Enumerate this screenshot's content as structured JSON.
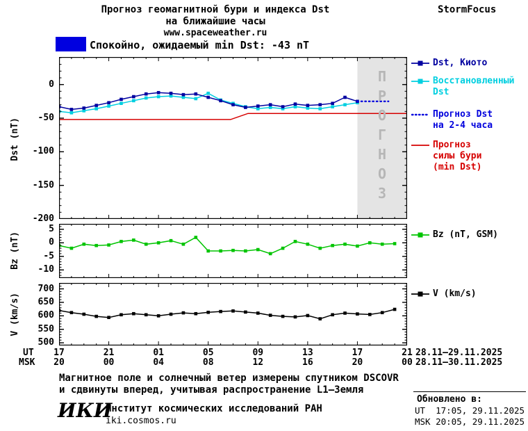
{
  "header": {
    "title_line1": "Прогноз геомагнитной бури и индекса Dst",
    "title_line2": "на ближайшие часы",
    "website": "www.spaceweather.ru",
    "brand": "StormFocus"
  },
  "banner": {
    "text": "Спокойно, ожидаемый min Dst: -43 nT"
  },
  "watermark": "ПРОГНОЗ",
  "colors": {
    "navy": "#0000a0",
    "cyan": "#00cfe0",
    "blue": "#0000dd",
    "red": "#d60000",
    "green": "#00c400",
    "black": "#000000",
    "banner_blue": "#0000e0",
    "forecast_gray": "#e4e4e4",
    "watermark_gray": "#b6b6b6"
  },
  "legend": {
    "dst_kyoto": "Dst, Киото",
    "restored": "Восстановленный\nDst",
    "forecast_dst": "Прогноз Dst\nна 2-4 часа",
    "forecast_storm": "Прогноз\nсилы бури\n(min Dst)",
    "bz": "Bz (nT, GSM)",
    "v": "V (km/s)"
  },
  "xaxis": {
    "ut_label": "UT",
    "msk_label": "MSK",
    "tick_hours": [
      0,
      4,
      8,
      12,
      16,
      20,
      24,
      28
    ],
    "ut_ticks": [
      "17",
      "21",
      "01",
      "05",
      "09",
      "13",
      "17",
      "21"
    ],
    "msk_ticks": [
      "20",
      "00",
      "04",
      "08",
      "12",
      "16",
      "20",
      "00"
    ],
    "ut_dates": "28.11–29.11.2025",
    "msk_dates": "28.11–30.11.2025"
  },
  "chart_data": [
    {
      "id": "dst",
      "type": "line",
      "title": "Прогноз геомагнитной бури и индекса Dst",
      "ylabel": "Dst (nT)",
      "xlabel": "UT/MSK hours",
      "xlim": [
        0,
        28
      ],
      "ylim": [
        -200,
        41
      ],
      "yticks": [
        0,
        -50,
        -100,
        -150,
        -200
      ],
      "forecast_region": [
        24,
        28
      ],
      "series": [
        {
          "name": "Прогноз силы бури (min Dst)",
          "color": "#d60000",
          "marker": false,
          "x": [
            0,
            13.8,
            15.2,
            28
          ],
          "y": [
            -52,
            -52,
            -43,
            -43
          ]
        },
        {
          "name": "Восстановленный Dst",
          "color": "#00cfe0",
          "marker": true,
          "x0": 0,
          "dx": 1,
          "y": [
            -40,
            -42,
            -39,
            -36,
            -32,
            -28,
            -24,
            -20,
            -18,
            -17,
            -19,
            -21,
            -13,
            -23,
            -28,
            -33,
            -36,
            -34,
            -36,
            -33,
            -35,
            -36,
            -33,
            -30,
            -27
          ]
        },
        {
          "name": "Dst, Киото",
          "color": "#0000a0",
          "marker": true,
          "x0": 0,
          "dx": 1,
          "y": [
            -33,
            -37,
            -35,
            -31,
            -27,
            -22,
            -18,
            -14,
            -12,
            -13,
            -15,
            -14,
            -19,
            -24,
            -30,
            -34,
            -32,
            -30,
            -33,
            -29,
            -31,
            -30,
            -28,
            -19,
            -25
          ]
        },
        {
          "name": "Прогноз Dst на 2-4 часа",
          "color": "#0000dd",
          "marker": false,
          "style": "dotted",
          "x": [
            24,
            26.5
          ],
          "y": [
            -25,
            -25
          ]
        }
      ]
    },
    {
      "id": "bz",
      "type": "line",
      "ylabel": "Bz (nT)",
      "xlim": [
        0,
        28
      ],
      "ylim": [
        -13,
        7
      ],
      "yticks": [
        5,
        0,
        -5,
        -10
      ],
      "series": [
        {
          "name": "Bz (nT, GSM)",
          "color": "#00c400",
          "marker": true,
          "x0": 0,
          "dx": 1,
          "y": [
            -1,
            -2,
            -0.5,
            -1,
            -0.8,
            0.5,
            1,
            -0.5,
            0,
            0.8,
            -0.5,
            2,
            -3,
            -3,
            -2.8,
            -3,
            -2.5,
            -4,
            -2,
            0.5,
            -0.5,
            -2,
            -1,
            -0.5,
            -1.2,
            0,
            -0.5,
            -0.3
          ]
        }
      ]
    },
    {
      "id": "v",
      "type": "line",
      "ylabel": "V (km/s)",
      "xlim": [
        0,
        28
      ],
      "ylim": [
        490,
        722
      ],
      "yticks": [
        700,
        650,
        600,
        550,
        500
      ],
      "series": [
        {
          "name": "V (km/s)",
          "color": "#000000",
          "marker": true,
          "x0": 0,
          "dx": 1,
          "y": [
            620,
            612,
            606,
            598,
            594,
            604,
            608,
            604,
            600,
            606,
            611,
            608,
            613,
            616,
            618,
            614,
            610,
            602,
            598,
            596,
            601,
            589,
            604,
            610,
            607,
            605,
            612,
            624
          ]
        }
      ]
    }
  ],
  "footer": {
    "note_line1": "Магнитное поле и солнечный ветер измерены спутником DSCOVR",
    "note_line2": "и сдвинуты вперед, учитывая распространение L1–Земля",
    "logo": "ИКИ",
    "institute": "Институт космических исследований РАН",
    "site": "iki.cosmos.ru",
    "updated_label": "Обновлено в:",
    "updated_ut": "UT  17:05, 29.11.2025",
    "updated_msk": "MSK 20:05, 29.11.2025"
  }
}
